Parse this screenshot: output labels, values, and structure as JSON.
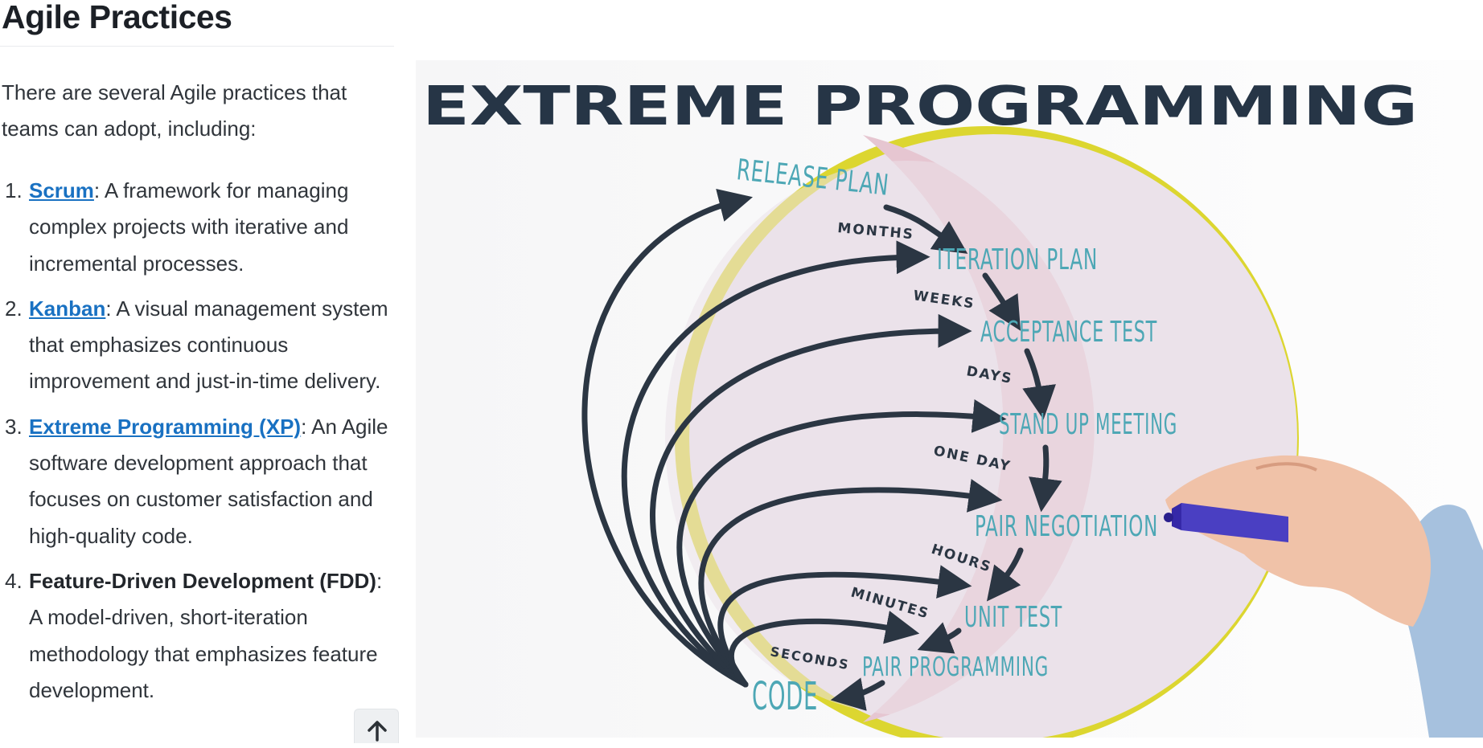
{
  "article": {
    "title": "Agile Practices",
    "intro": "There are several Agile practices that teams can adopt, including:",
    "practices": [
      {
        "number": "1.",
        "name": "Scrum",
        "description": ": A framework for managing complex projects with iterative and incremental processes."
      },
      {
        "number": "2.",
        "name": "Kanban",
        "description": ": A visual management system that emphasizes continuous improvement and just-in-time delivery."
      },
      {
        "number": "3.",
        "name": "Extreme Programming (XP)",
        "description": ": An Agile software development approach that focuses on customer satisfaction and high-quality code."
      },
      {
        "number": "4.",
        "name": "Feature-Driven Development (FDD)",
        "description": ": A model-driven, short-iteration methodology that emphasizes feature development."
      }
    ]
  },
  "scroll_top_icon": "arrow-up-icon",
  "figure": {
    "title": "EXTREME PROGRAMMING",
    "stages": [
      "RELEASE PLAN",
      "ITERATION PLAN",
      "ACCEPTANCE TEST",
      "STAND UP MEETING",
      "PAIR NEGOTIATION",
      "UNIT TEST",
      "PAIR PROGRAMMING",
      "CODE"
    ],
    "intervals": [
      "MONTHS",
      "WEEKS",
      "DAYS",
      "ONE DAY",
      "HOURS",
      "MINUTES",
      "SECONDS"
    ],
    "colors": {
      "title": "#263546",
      "stage_text": "#4da7b5",
      "arrows": "#2b3643",
      "yellow_ring": "#dcd630",
      "pink_circle": "#e6c6d1",
      "inner_circle": "#ebe2ea",
      "marker": "#4a3fc2"
    }
  }
}
